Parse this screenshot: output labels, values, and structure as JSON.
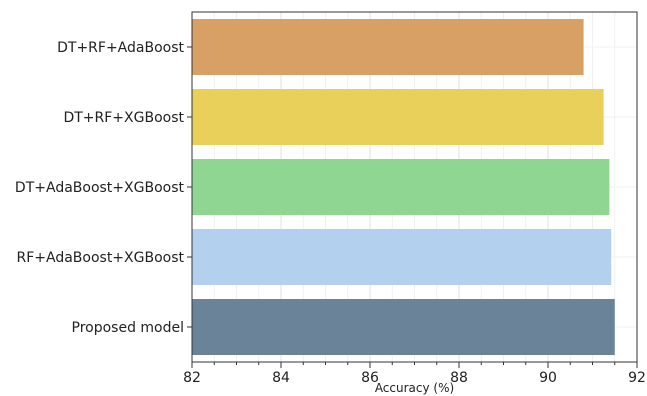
{
  "chart_data": {
    "type": "bar",
    "orientation": "horizontal",
    "title": "",
    "xlabel": "Accuracy (%)",
    "ylabel": "",
    "xlim": [
      82,
      92
    ],
    "xticks": [
      "82",
      "84",
      "86",
      "88",
      "90",
      "92"
    ],
    "grid": true,
    "categories": [
      "DT+RF+AdaBoost",
      "DT+RF+XGBoost",
      "DT+AdaBoost+XGBoost",
      "RF+AdaBoost+XGBoost",
      "Proposed model"
    ],
    "values": [
      90.8,
      91.25,
      91.38,
      91.42,
      91.5
    ],
    "colors": [
      "#d9a066",
      "#e8d05a",
      "#8fd693",
      "#b3d1ee",
      "#6b8399"
    ]
  }
}
